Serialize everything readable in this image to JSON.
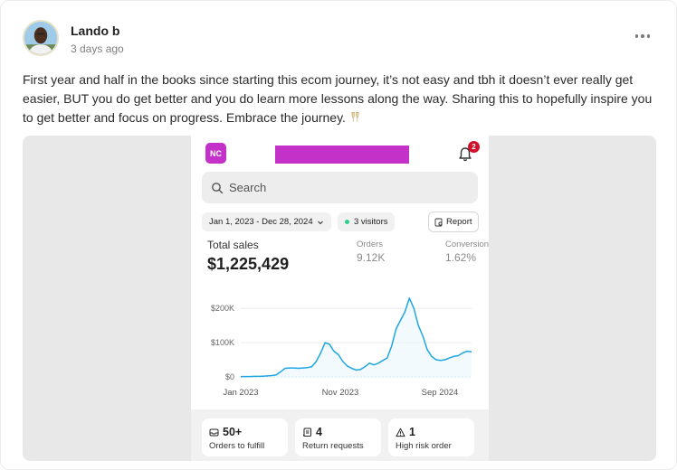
{
  "post": {
    "author": "Lando b",
    "time": "3 days ago",
    "text": "First year and half in the books since starting this ecom journey, it’s not easy and tbh it doesn’t ever really get easier, BUT you do get better and you do learn more lessons along the way. Sharing this to hopefully inspire you to get better and focus on progress. Embrace the journey."
  },
  "app": {
    "store_initials": "NC",
    "notification_count": "2",
    "search_placeholder": "Search",
    "date_range": "Jan 1, 2023 - Dec 28, 2024",
    "visitors": "3 visitors",
    "report_label": "Report"
  },
  "metrics": {
    "total_sales_label": "Total sales",
    "total_sales_value": "$1,225,429",
    "orders_label": "Orders",
    "orders_value": "9.12K",
    "conversion_label": "Conversion",
    "conversion_value": "1.62%"
  },
  "tiles": [
    {
      "value": "50+",
      "label": "Orders to fulfill",
      "icon": "inbox-icon"
    },
    {
      "value": "4",
      "label": "Return requests",
      "icon": "return-icon"
    },
    {
      "value": "1",
      "label": "High risk order",
      "icon": "warning-icon"
    }
  ],
  "colors": {
    "brand": "#c331c8",
    "line": "#1fa6e0",
    "badge": "#d0112b"
  },
  "chart_data": {
    "type": "line",
    "x_tick_labels": [
      "Jan 2023",
      "Nov 2023",
      "Sep 2024"
    ],
    "y_tick_labels": [
      "$0",
      "$100K",
      "$200K"
    ],
    "ylim": [
      0,
      240000
    ],
    "grid": true,
    "series": [
      {
        "values": [
          1000,
          1000,
          1000,
          1500,
          1500,
          2000,
          3000,
          4000,
          6000,
          15000,
          25000,
          26000,
          26000,
          25000,
          26000,
          27000,
          30000,
          45000,
          70000,
          100000,
          95000,
          75000,
          65000,
          45000,
          32000,
          25000,
          20000,
          22000,
          30000,
          40000,
          35000,
          40000,
          48000,
          55000,
          90000,
          140000,
          165000,
          190000,
          230000,
          200000,
          150000,
          120000,
          80000,
          60000,
          50000,
          48000,
          50000,
          55000,
          60000,
          62000,
          70000,
          75000,
          73000
        ]
      }
    ]
  }
}
